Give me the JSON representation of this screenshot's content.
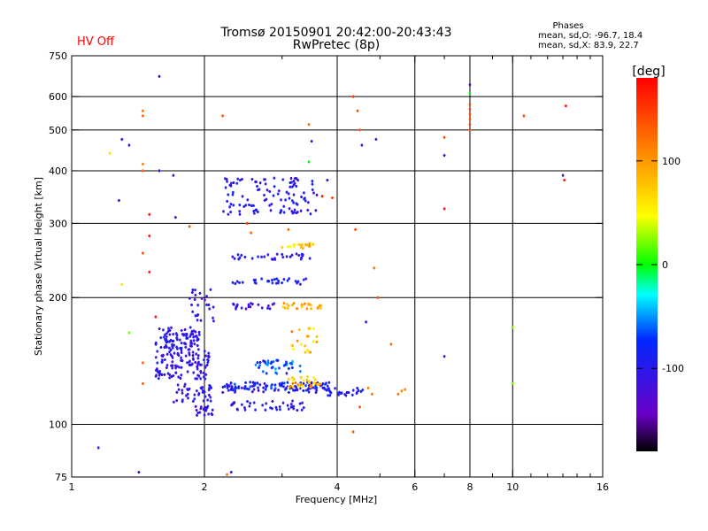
{
  "header": {
    "title_line1": "Tromsø 20150901 20:42:00-20:43:43",
    "title_line2": "RwPretec (8p)",
    "status": "HV Off",
    "phases_title": "Phases",
    "phases_line1": "mean, sd,O: -96.7, 18.4",
    "phases_line2": "mean, sd,X: 83.9, 22.7"
  },
  "colors": {
    "status": "#ff0000",
    "grid": "#000000"
  },
  "chart_data": {
    "type": "scatter",
    "xlabel": "Frequency [MHz]",
    "ylabel": "Stationary phase Virtual Height [km]",
    "xscale": "log",
    "yscale": "log",
    "xlim": [
      1,
      16
    ],
    "ylim": [
      75,
      750
    ],
    "xticks": [
      1,
      2,
      4,
      6,
      8,
      10,
      16
    ],
    "xtick_labels": [
      "1",
      "2",
      "4",
      "6",
      "8",
      "10",
      "16"
    ],
    "xminor": [
      3,
      5,
      7,
      9,
      11,
      12,
      13,
      14,
      15
    ],
    "yticks": [
      75,
      100,
      200,
      300,
      400,
      500,
      600,
      750
    ],
    "ytick_labels": [
      "75",
      "100",
      "200",
      "300",
      "400",
      "500",
      "600",
      "750"
    ],
    "xgrid": [
      2,
      4,
      6,
      8,
      10
    ],
    "ygrid": [
      100,
      200,
      300,
      400,
      500,
      600
    ],
    "colorbar": {
      "label": "[deg]",
      "range": [
        -180,
        180
      ],
      "ticks": [
        100,
        0,
        -100
      ],
      "tick_labels": [
        "100",
        "0",
        "-100"
      ]
    },
    "clusters": [
      {
        "fx": [
          1.55,
          1.95
        ],
        "h": [
          150,
          170
        ],
        "phase": [
          -120,
          -85
        ],
        "n": 90
      },
      {
        "fx": [
          1.55,
          2.05
        ],
        "h": [
          128,
          150
        ],
        "phase": [
          -125,
          -85
        ],
        "n": 110
      },
      {
        "fx": [
          1.7,
          2.1
        ],
        "h": [
          113,
          125
        ],
        "phase": [
          -120,
          -90
        ],
        "n": 40
      },
      {
        "fx": [
          1.9,
          2.1
        ],
        "h": [
          105,
          111
        ],
        "phase": [
          -120,
          -95
        ],
        "n": 20
      },
      {
        "fx": [
          2.2,
          3.9
        ],
        "h": [
          119,
          126
        ],
        "phase": [
          -120,
          -60
        ],
        "n": 120
      },
      {
        "fx": [
          2.3,
          3.4
        ],
        "h": [
          108,
          114
        ],
        "phase": [
          -115,
          -85
        ],
        "n": 40
      },
      {
        "fx": [
          3.7,
          4.6
        ],
        "h": [
          117,
          122
        ],
        "phase": [
          -110,
          -80
        ],
        "n": 25
      },
      {
        "fx": [
          2.6,
          3.3
        ],
        "h": [
          132,
          142
        ],
        "phase": [
          -100,
          -40
        ],
        "n": 40
      },
      {
        "fx": [
          3.1,
          3.7
        ],
        "h": [
          122,
          130
        ],
        "phase": [
          40,
          130
        ],
        "n": 35
      },
      {
        "fx": [
          3.1,
          3.6
        ],
        "h": [
          148,
          170
        ],
        "phase": [
          40,
          120
        ],
        "n": 20
      },
      {
        "fx": [
          2.3,
          2.9
        ],
        "h": [
          188,
          194
        ],
        "phase": [
          -130,
          -90
        ],
        "n": 20
      },
      {
        "fx": [
          3.0,
          3.7
        ],
        "h": [
          188,
          194
        ],
        "phase": [
          60,
          120
        ],
        "n": 28
      },
      {
        "fx": [
          2.3,
          3.5
        ],
        "h": [
          215,
          222
        ],
        "phase": [
          -110,
          -70
        ],
        "n": 30
      },
      {
        "fx": [
          2.3,
          3.5
        ],
        "h": [
          246,
          254
        ],
        "phase": [
          -120,
          -80
        ],
        "n": 30
      },
      {
        "fx": [
          3.0,
          3.6
        ],
        "h": [
          262,
          270
        ],
        "phase": [
          40,
          120
        ],
        "n": 20
      },
      {
        "fx": [
          2.2,
          3.6
        ],
        "h": [
          315,
          385
        ],
        "phase": [
          -120,
          -80
        ],
        "n": 110
      },
      {
        "fx": [
          1.85,
          2.1
        ],
        "h": [
          172,
          210
        ],
        "phase": [
          -125,
          -85
        ],
        "n": 25
      }
    ],
    "points": [
      {
        "f": 1.15,
        "h": 88,
        "phase": -110
      },
      {
        "f": 1.42,
        "h": 77,
        "phase": -110
      },
      {
        "f": 2.3,
        "h": 77,
        "phase": -110
      },
      {
        "f": 2.25,
        "h": 76,
        "phase": 120
      },
      {
        "f": 1.58,
        "h": 670,
        "phase": -110
      },
      {
        "f": 1.45,
        "h": 555,
        "phase": 120
      },
      {
        "f": 1.45,
        "h": 540,
        "phase": 130
      },
      {
        "f": 2.2,
        "h": 540,
        "phase": 140
      },
      {
        "f": 1.3,
        "h": 475,
        "phase": -120
      },
      {
        "f": 1.35,
        "h": 460,
        "phase": -110
      },
      {
        "f": 1.22,
        "h": 440,
        "phase": 60
      },
      {
        "f": 1.45,
        "h": 415,
        "phase": 110
      },
      {
        "f": 1.45,
        "h": 400,
        "phase": 140
      },
      {
        "f": 1.58,
        "h": 400,
        "phase": -110
      },
      {
        "f": 1.7,
        "h": 390,
        "phase": -110
      },
      {
        "f": 1.28,
        "h": 340,
        "phase": -110
      },
      {
        "f": 1.5,
        "h": 315,
        "phase": 170
      },
      {
        "f": 1.72,
        "h": 310,
        "phase": -110
      },
      {
        "f": 1.85,
        "h": 295,
        "phase": 140
      },
      {
        "f": 1.5,
        "h": 280,
        "phase": 170
      },
      {
        "f": 1.45,
        "h": 255,
        "phase": 140
      },
      {
        "f": 1.5,
        "h": 230,
        "phase": 170
      },
      {
        "f": 1.3,
        "h": 215,
        "phase": 60
      },
      {
        "f": 1.55,
        "h": 180,
        "phase": 170
      },
      {
        "f": 1.35,
        "h": 165,
        "phase": 20
      },
      {
        "f": 1.45,
        "h": 140,
        "phase": 130
      },
      {
        "f": 1.45,
        "h": 125,
        "phase": 130
      },
      {
        "f": 3.45,
        "h": 515,
        "phase": 120
      },
      {
        "f": 3.5,
        "h": 470,
        "phase": -110
      },
      {
        "f": 3.45,
        "h": 420,
        "phase": 0
      },
      {
        "f": 3.8,
        "h": 380,
        "phase": -110
      },
      {
        "f": 4.35,
        "h": 600,
        "phase": 150
      },
      {
        "f": 4.45,
        "h": 555,
        "phase": 140
      },
      {
        "f": 4.5,
        "h": 500,
        "phase": 140
      },
      {
        "f": 4.55,
        "h": 460,
        "phase": -110
      },
      {
        "f": 4.9,
        "h": 475,
        "phase": -120
      },
      {
        "f": 4.4,
        "h": 290,
        "phase": 140
      },
      {
        "f": 4.85,
        "h": 235,
        "phase": 120
      },
      {
        "f": 4.95,
        "h": 200,
        "phase": 140
      },
      {
        "f": 4.65,
        "h": 175,
        "phase": -120
      },
      {
        "f": 5.3,
        "h": 155,
        "phase": 130
      },
      {
        "f": 4.5,
        "h": 110,
        "phase": 140
      },
      {
        "f": 4.35,
        "h": 96,
        "phase": 140
      },
      {
        "f": 7.0,
        "h": 480,
        "phase": 140
      },
      {
        "f": 7.0,
        "h": 435,
        "phase": -110
      },
      {
        "f": 7.0,
        "h": 325,
        "phase": 170
      },
      {
        "f": 7.0,
        "h": 145,
        "phase": -110
      },
      {
        "f": 8.0,
        "h": 640,
        "phase": -110
      },
      {
        "f": 8.0,
        "h": 610,
        "phase": 0
      },
      {
        "f": 8.0,
        "h": 575,
        "phase": 140
      },
      {
        "f": 8.0,
        "h": 560,
        "phase": 140
      },
      {
        "f": 8.0,
        "h": 545,
        "phase": 140
      },
      {
        "f": 8.0,
        "h": 530,
        "phase": 140
      },
      {
        "f": 8.0,
        "h": 515,
        "phase": 140
      },
      {
        "f": 8.0,
        "h": 500,
        "phase": 140
      },
      {
        "f": 10.0,
        "h": 170,
        "phase": 20
      },
      {
        "f": 10.0,
        "h": 125,
        "phase": 20
      },
      {
        "f": 10.6,
        "h": 540,
        "phase": 140
      },
      {
        "f": 13.2,
        "h": 570,
        "phase": 170
      },
      {
        "f": 13.0,
        "h": 390,
        "phase": -120
      },
      {
        "f": 13.1,
        "h": 380,
        "phase": 170
      },
      {
        "f": 5.6,
        "h": 120,
        "phase": 110
      },
      {
        "f": 5.7,
        "h": 121,
        "phase": 110
      },
      {
        "f": 5.5,
        "h": 118,
        "phase": 120
      },
      {
        "f": 4.7,
        "h": 122,
        "phase": 110
      },
      {
        "f": 4.8,
        "h": 118,
        "phase": 120
      },
      {
        "f": 3.7,
        "h": 348,
        "phase": 170
      },
      {
        "f": 3.9,
        "h": 345,
        "phase": 150
      },
      {
        "f": 2.5,
        "h": 300,
        "phase": 150
      },
      {
        "f": 2.55,
        "h": 285,
        "phase": 130
      },
      {
        "f": 3.1,
        "h": 290,
        "phase": 120
      }
    ]
  }
}
